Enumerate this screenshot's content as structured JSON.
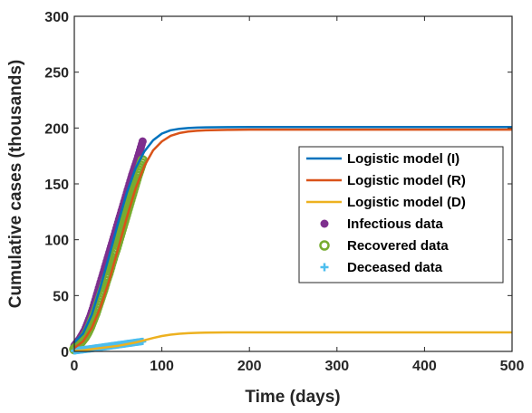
{
  "chart_data": {
    "type": "line",
    "title": "",
    "xlabel": "Time (days)",
    "ylabel": "Cumulative cases (thousands)",
    "xlim": [
      0,
      500
    ],
    "ylim": [
      0,
      300
    ],
    "xticks": [
      0,
      100,
      200,
      300,
      400,
      500
    ],
    "yticks": [
      0,
      50,
      100,
      150,
      200,
      250,
      300
    ],
    "grid": false,
    "legend_position": "right",
    "series": [
      {
        "name": "Logistic model (I)",
        "kind": "line",
        "color": "#0072BD",
        "x": [
          0,
          10,
          20,
          30,
          40,
          50,
          60,
          70,
          80,
          90,
          100,
          110,
          120,
          130,
          140,
          150,
          175,
          200,
          250,
          300,
          350,
          400,
          450,
          500
        ],
        "y": [
          8,
          16,
          33,
          58,
          86,
          115,
          142,
          164,
          179,
          189,
          195,
          198,
          199.3,
          200,
          200.4,
          200.6,
          200.8,
          200.9,
          200.9,
          200.9,
          200.9,
          200.9,
          200.9,
          200.9
        ]
      },
      {
        "name": "Logistic model (R)",
        "kind": "line",
        "color": "#D95319",
        "x": [
          0,
          10,
          20,
          30,
          40,
          50,
          60,
          70,
          80,
          90,
          100,
          110,
          120,
          130,
          140,
          150,
          175,
          200,
          250,
          300,
          350,
          400,
          450,
          500
        ],
        "y": [
          3,
          9,
          21,
          40,
          64,
          92,
          120,
          146,
          166,
          180,
          188,
          193,
          195.5,
          196.8,
          197.5,
          197.9,
          198.3,
          198.5,
          198.5,
          198.5,
          198.5,
          198.5,
          198.5,
          198.5
        ]
      },
      {
        "name": "Logistic model (D)",
        "kind": "line",
        "color": "#EDB120",
        "x": [
          0,
          10,
          20,
          30,
          40,
          50,
          60,
          70,
          80,
          90,
          100,
          110,
          120,
          130,
          140,
          150,
          175,
          200,
          250,
          300,
          350,
          400,
          450,
          500
        ],
        "y": [
          0.5,
          1,
          2,
          3,
          4,
          5,
          6.5,
          8,
          10,
          12,
          13.8,
          15,
          15.8,
          16.3,
          16.6,
          16.8,
          17,
          17,
          17,
          17,
          17,
          17,
          17,
          17
        ]
      },
      {
        "name": "Infectious data",
        "kind": "scatter",
        "marker": "filled-circle",
        "color": "#7E2F8E",
        "x": [
          0,
          3,
          6,
          9,
          12,
          15,
          18,
          21,
          24,
          27,
          30,
          33,
          36,
          39,
          42,
          45,
          48,
          51,
          54,
          57,
          60,
          63,
          66,
          69,
          72,
          75,
          78
        ],
        "y": [
          5,
          8,
          11,
          15,
          19,
          25,
          31,
          38,
          46,
          54,
          62,
          70,
          78,
          86,
          94,
          102,
          110,
          118,
          126,
          134,
          142,
          150,
          158,
          165,
          172,
          180,
          188
        ]
      },
      {
        "name": "Recovered data",
        "kind": "scatter",
        "marker": "open-circle",
        "color": "#77AC30",
        "x": [
          0,
          3,
          6,
          9,
          12,
          15,
          18,
          21,
          24,
          27,
          30,
          33,
          36,
          39,
          42,
          45,
          48,
          51,
          54,
          57,
          60,
          63,
          66,
          69,
          72,
          75,
          78
        ],
        "y": [
          2,
          4,
          7,
          10,
          13,
          17,
          22,
          28,
          34,
          41,
          48,
          55,
          63,
          70,
          78,
          86,
          93,
          101,
          109,
          117,
          125,
          133,
          141,
          149,
          157,
          164,
          171
        ]
      },
      {
        "name": "Deceased data",
        "kind": "scatter",
        "marker": "plus",
        "color": "#4DBEEE",
        "x": [
          0,
          3,
          6,
          9,
          12,
          15,
          18,
          21,
          24,
          27,
          30,
          33,
          36,
          39,
          42,
          45,
          48,
          51,
          54,
          57,
          60,
          63,
          66,
          69,
          72,
          75,
          78
        ],
        "y": [
          0.5,
          0.8,
          1.1,
          1.4,
          1.7,
          2,
          2.3,
          2.6,
          3,
          3.3,
          3.6,
          4,
          4.3,
          4.6,
          5,
          5.3,
          5.6,
          6,
          6.3,
          6.6,
          7,
          7.3,
          7.6,
          8,
          8.3,
          8.6,
          9
        ]
      }
    ]
  }
}
